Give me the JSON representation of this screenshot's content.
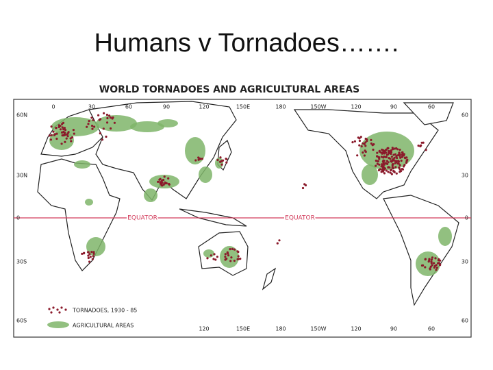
{
  "title": "Humans v Tornadoes…….",
  "map": {
    "heading": "WORLD TORNADOES AND AGRICULTURAL AREAS",
    "top_labels": [
      "0",
      "30",
      "60",
      "90",
      "120",
      "150E",
      "180",
      "150W",
      "120",
      "90",
      "60"
    ],
    "bottom_labels": [
      "120",
      "150E",
      "180",
      "150W",
      "120",
      "90",
      "60"
    ],
    "left_labels": [
      "60N",
      "30N",
      "0",
      "30S",
      "60S"
    ],
    "right_labels": [
      "60",
      "30",
      "0",
      "30",
      "60"
    ],
    "equator_labels": [
      "EQUATOR",
      "EQUATOR"
    ],
    "legend": [
      "TORNADOES, 1930 - 85",
      "AGRICULTURAL AREAS"
    ]
  }
}
